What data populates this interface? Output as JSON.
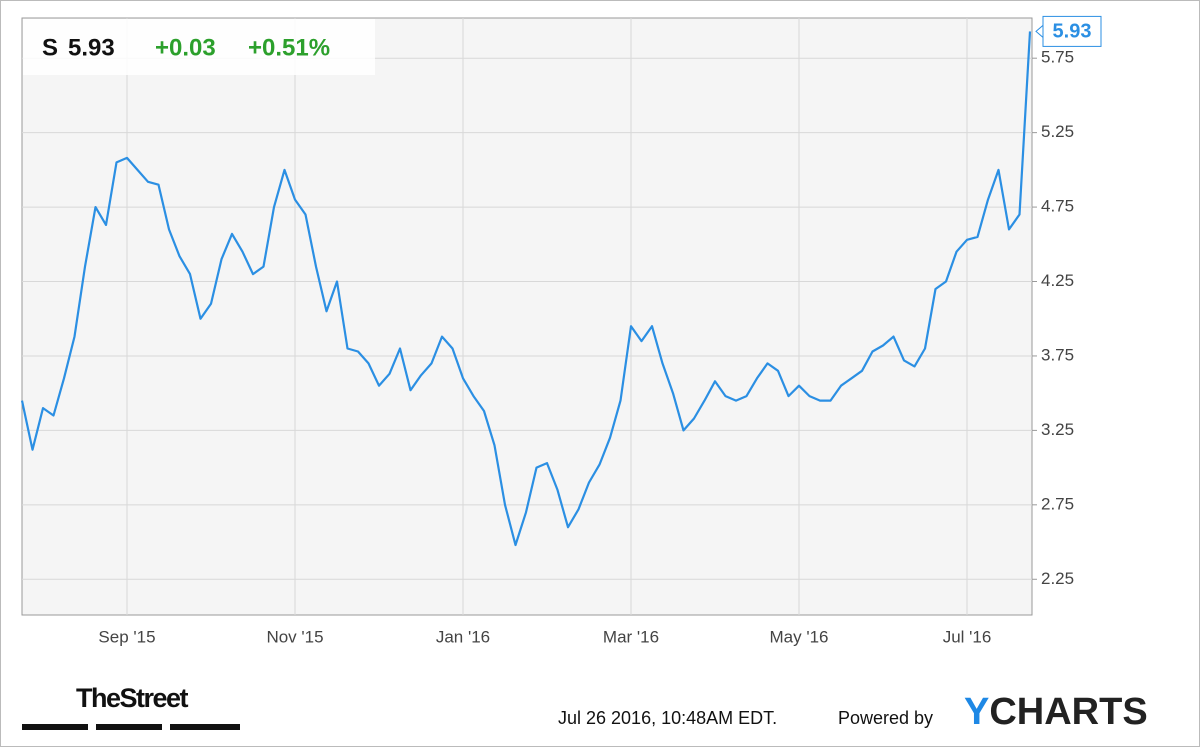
{
  "header": {
    "symbol": "S",
    "price": 5.93,
    "change": "+0.03",
    "change_percent": "+0.51%"
  },
  "chart_data": {
    "type": "line",
    "categories": [
      null,
      null,
      null,
      null,
      null,
      null,
      null,
      null,
      null,
      null,
      "Sep '15",
      null,
      null,
      null,
      null,
      null,
      null,
      null,
      null,
      null,
      null,
      null,
      null,
      null,
      null,
      null,
      "Nov '15",
      null,
      null,
      null,
      null,
      null,
      null,
      null,
      null,
      null,
      null,
      null,
      null,
      null,
      null,
      null,
      "Jan '16",
      null,
      null,
      null,
      null,
      null,
      null,
      null,
      null,
      null,
      null,
      null,
      null,
      null,
      null,
      null,
      "Mar '16",
      null,
      null,
      null,
      null,
      null,
      null,
      null,
      null,
      null,
      null,
      null,
      null,
      null,
      null,
      null,
      "May '16",
      null,
      null,
      null,
      null,
      null,
      null,
      null,
      null,
      null,
      null,
      null,
      null,
      null,
      null,
      null,
      "Jul '16",
      null,
      null,
      null,
      null,
      null,
      null
    ],
    "values": [
      3.45,
      3.12,
      3.4,
      3.35,
      3.6,
      3.88,
      4.35,
      4.75,
      4.63,
      5.05,
      5.08,
      5.0,
      4.92,
      4.9,
      4.6,
      4.42,
      4.3,
      4.0,
      4.1,
      4.4,
      4.57,
      4.45,
      4.3,
      4.35,
      4.75,
      5.0,
      4.8,
      4.7,
      4.35,
      4.05,
      4.25,
      3.8,
      3.78,
      3.7,
      3.55,
      3.63,
      3.8,
      3.52,
      3.62,
      3.7,
      3.88,
      3.8,
      3.6,
      3.48,
      3.38,
      3.15,
      2.75,
      2.48,
      2.7,
      3.0,
      3.03,
      2.85,
      2.6,
      2.72,
      2.9,
      3.02,
      3.2,
      3.45,
      3.95,
      3.85,
      3.95,
      3.7,
      3.5,
      3.25,
      3.33,
      3.45,
      3.58,
      3.48,
      3.45,
      3.48,
      3.6,
      3.7,
      3.65,
      3.48,
      3.55,
      3.48,
      3.45,
      3.45,
      3.55,
      3.6,
      3.65,
      3.78,
      3.82,
      3.88,
      3.72,
      3.68,
      3.8,
      4.2,
      4.25,
      4.45,
      4.53,
      4.55,
      4.8,
      5.0,
      4.6,
      4.7,
      5.93
    ],
    "color": "#2b8fe3",
    "ylim": [
      2.01,
      6.02
    ],
    "yticks": [
      2.25,
      2.75,
      3.25,
      3.75,
      4.25,
      4.75,
      5.25,
      5.75
    ],
    "grid": true
  },
  "footer": {
    "source": "TheStreet",
    "timestamp": "Jul 26 2016, 10:48AM EDT.",
    "powered_by": "Powered by",
    "brand_first": "Y",
    "brand_rest": "CHARTS"
  }
}
